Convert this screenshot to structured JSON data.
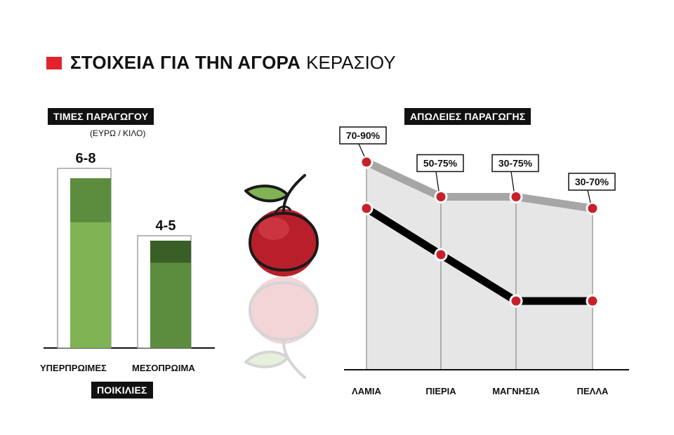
{
  "title": {
    "bold": "ΣΤΟΙΧΕΙΑ ΓΙΑ ΤΗΝ ΑΓΟΡΑ",
    "light": "ΚΕΡΑΣΙΟΥ"
  },
  "colors": {
    "accent": "#e3232b",
    "green_light": "#7fb353",
    "green_mid": "#5c8c3e",
    "green_dark": "#3a5f26",
    "series_gray": "#a6a6a6",
    "series_black": "#000000",
    "point_red": "#c8202a"
  },
  "chart_data": [
    {
      "type": "bar",
      "title": "ΤΙΜΕΣ ΠΑΡΑΓΩΓΟΥ",
      "unit": "(ΕΥΡΩ / ΚΙΛΟ)",
      "xlabel": "ΠΟΙΚΙΛΙΕΣ",
      "categories": [
        "ΥΠΕΡΠΡΩΙΜΕΣ",
        "ΜΕΣΟΠΡΩΙΜΑ"
      ],
      "ranges": [
        {
          "label": "6-8",
          "low": 6,
          "high": 8
        },
        {
          "label": "4-5",
          "low": 4,
          "high": 5
        }
      ],
      "ylim": [
        0,
        9
      ]
    },
    {
      "type": "line",
      "title": "ΑΠΩΛΕΙΕΣ ΠΑΡΑΓΩΓΗΣ",
      "categories": [
        "ΛΑΜΙΑ",
        "ΠΙΕΡΙΑ",
        "ΜΑΓΝΗΣΙΑ",
        "ΠΕΛΛΑ"
      ],
      "series": [
        {
          "values": [
            90,
            75,
            75,
            70
          ]
        },
        {
          "values": [
            70,
            50,
            30,
            30
          ]
        }
      ],
      "labels": [
        "70-90%",
        "50-75%",
        "30-75%",
        "30-70%"
      ],
      "ylim": [
        0,
        100
      ]
    }
  ]
}
